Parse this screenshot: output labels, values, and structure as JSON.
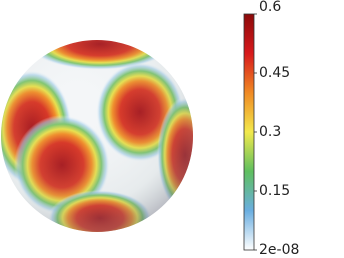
{
  "chart_data": {
    "type": "sphere-colormap",
    "clim": [
      2e-08,
      0.6
    ],
    "yticks": [
      0.6,
      0.45,
      0.3,
      0.15,
      {
        "value": 2e-08,
        "label": "2e-08"
      }
    ],
    "colormap": [
      "#ffffff",
      "#6aaee0",
      "#5fbf5f",
      "#f2e94c",
      "#f08a24",
      "#d7191c",
      "#8b0a0a"
    ]
  }
}
